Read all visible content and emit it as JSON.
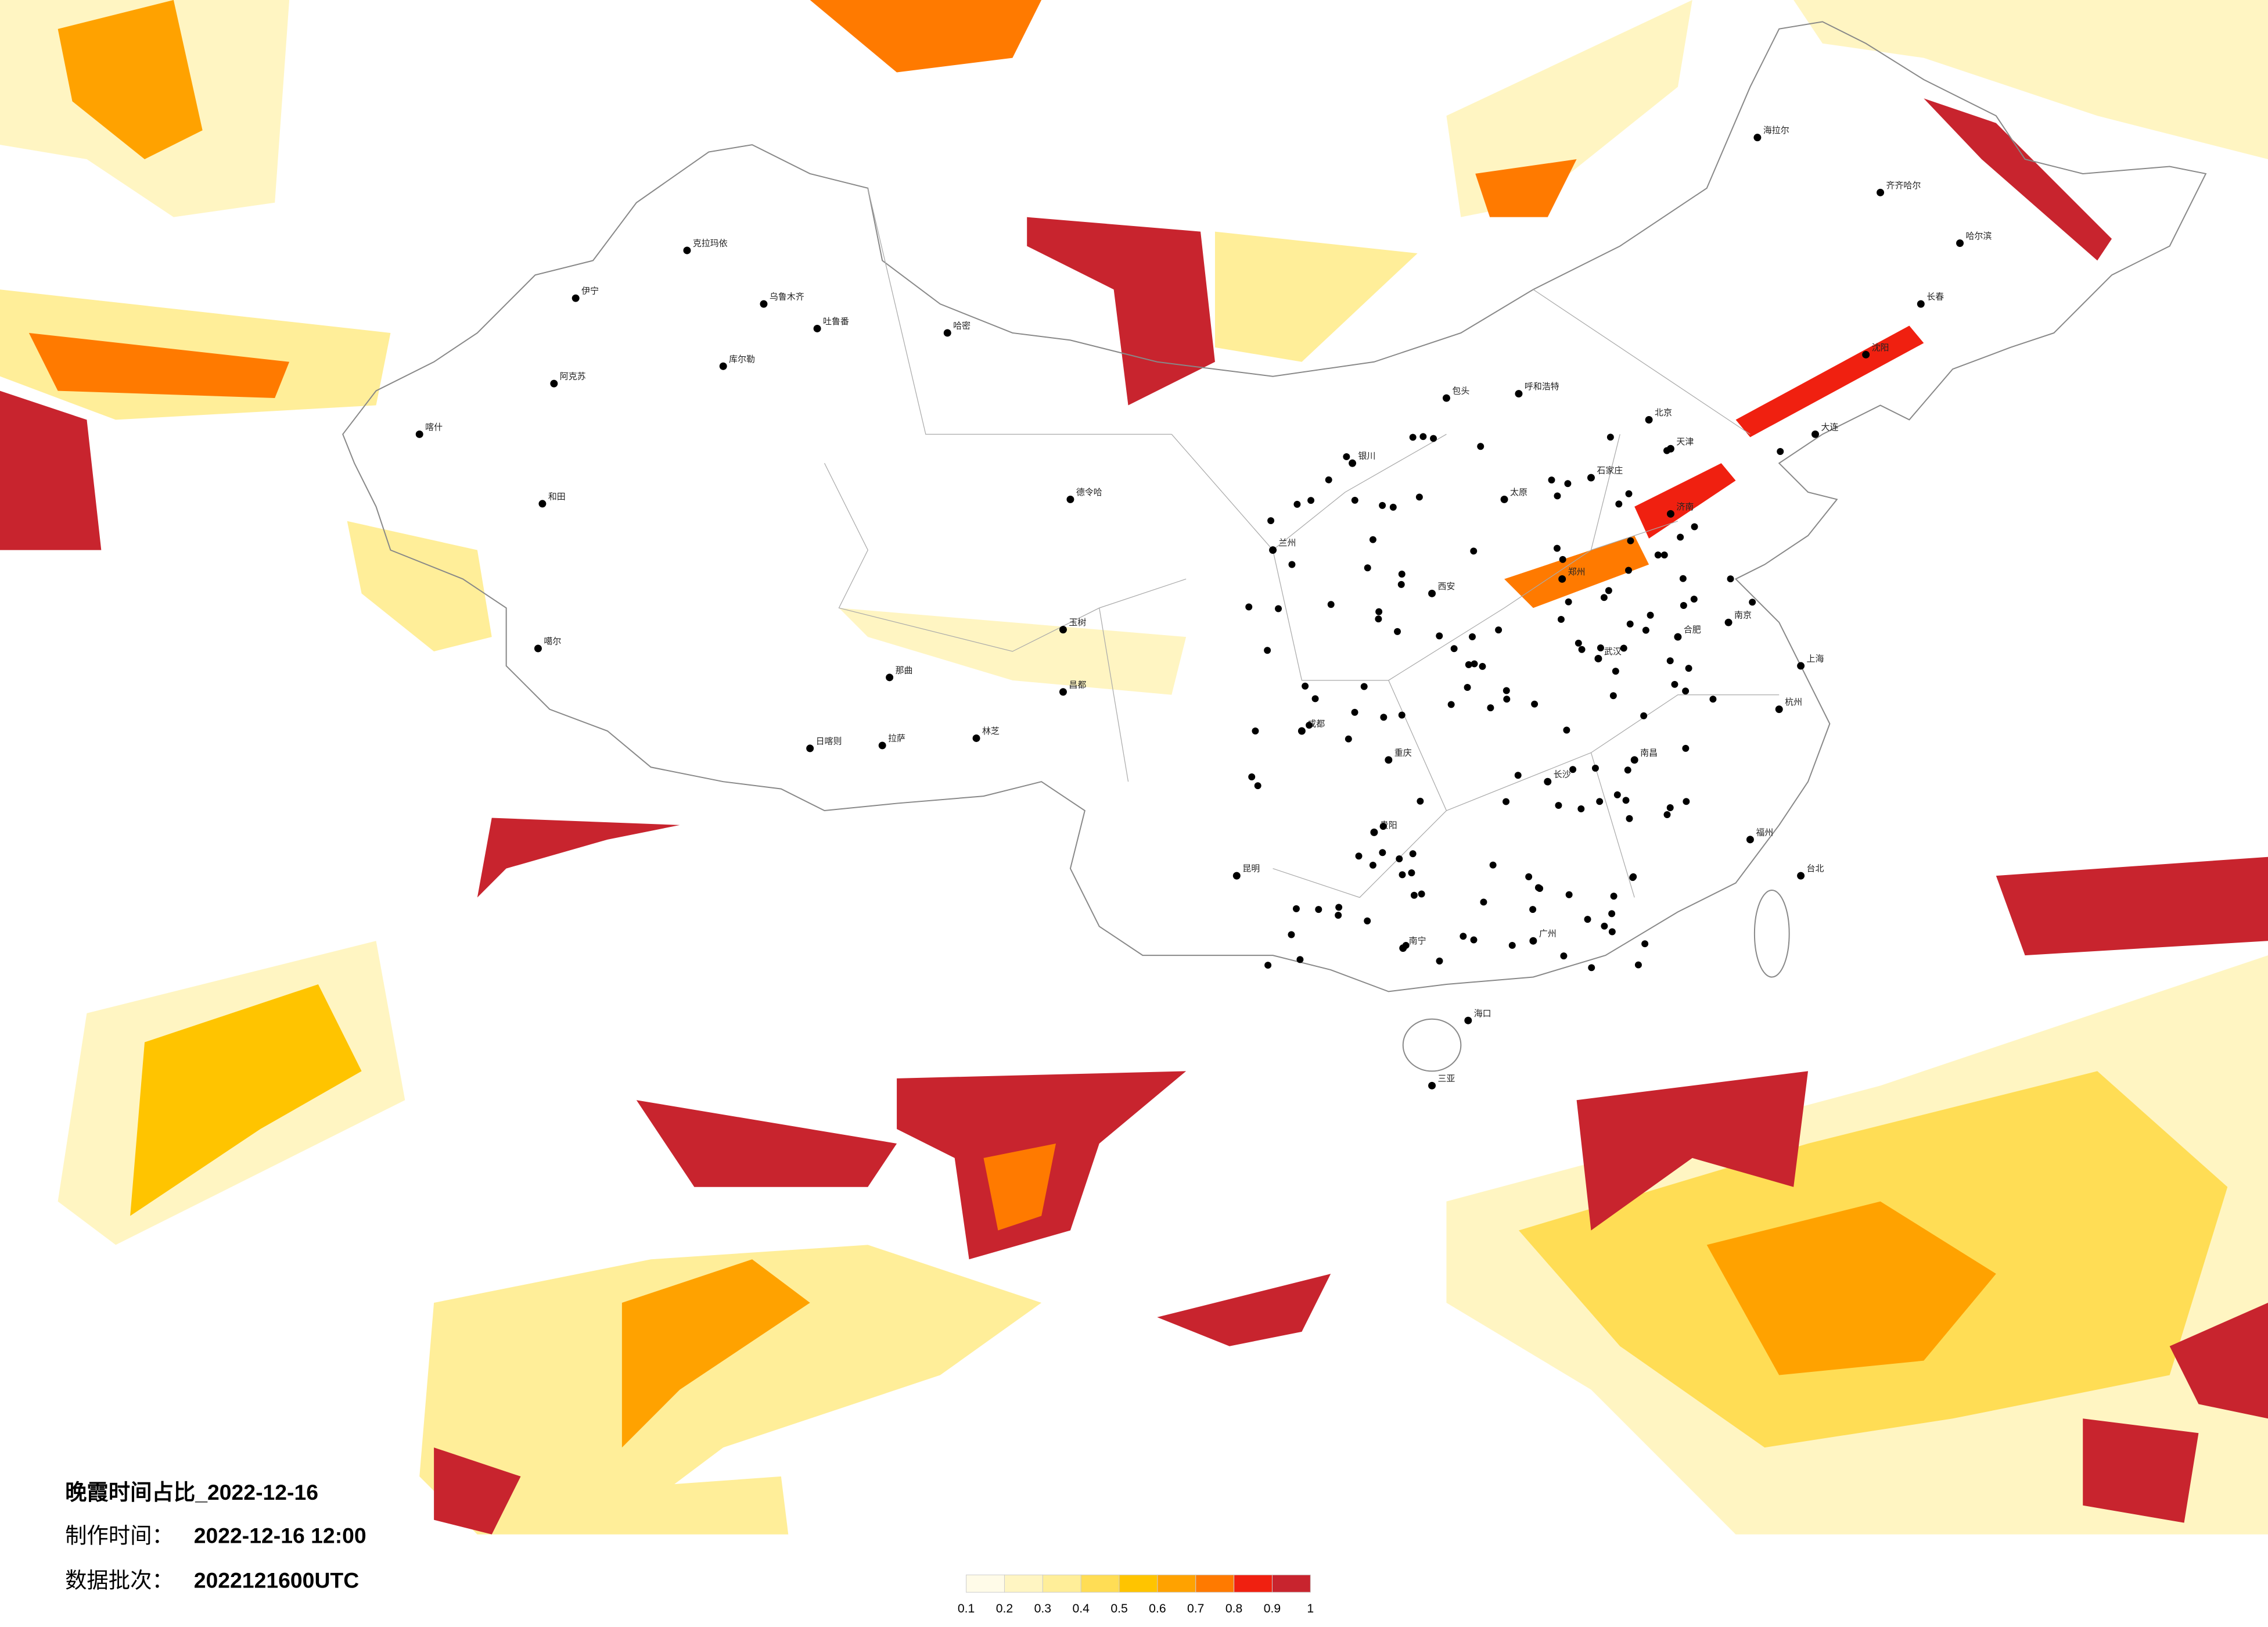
{
  "info": {
    "title": "晚霞时间占比_2022-12-16",
    "made_label": "制作时间：",
    "made_value": "2022-12-16 12:00",
    "batch_label": "数据批次：",
    "batch_value": "2022121600UTC"
  },
  "colorbar": {
    "colors": [
      "#fffbe8",
      "#fff5c2",
      "#ffee99",
      "#ffdd55",
      "#ffc400",
      "#ffa200",
      "#ff7a00",
      "#f02010",
      "#c8242e"
    ],
    "ticks": [
      0.1,
      0.2,
      0.3,
      0.4,
      0.5,
      0.6,
      0.7,
      0.8,
      0.9,
      1
    ]
  },
  "cities": [
    "克拉玛依",
    "乌鲁木齐",
    "伊宁",
    "吐鲁番",
    "哈密",
    "库尔勒",
    "阿克苏",
    "喀什",
    "和田",
    "德令哈",
    "日喀则",
    "拉萨",
    "林芝",
    "那曲",
    "昌都",
    "玉树",
    "噶尔",
    "呼和浩特",
    "包头",
    "海拉尔",
    "齐齐哈尔",
    "哈尔滨",
    "长春",
    "沈阳",
    "大连",
    "北京",
    "天津",
    "石家庄",
    "太原",
    "济南",
    "郑州",
    "西安",
    "兰州",
    "银川",
    "成都",
    "重庆",
    "武汉",
    "合肥",
    "南京",
    "上海",
    "杭州",
    "福州",
    "南昌",
    "长沙",
    "贵阳",
    "昆明",
    "南宁",
    "广州",
    "海口",
    "台北",
    "三亚"
  ]
}
